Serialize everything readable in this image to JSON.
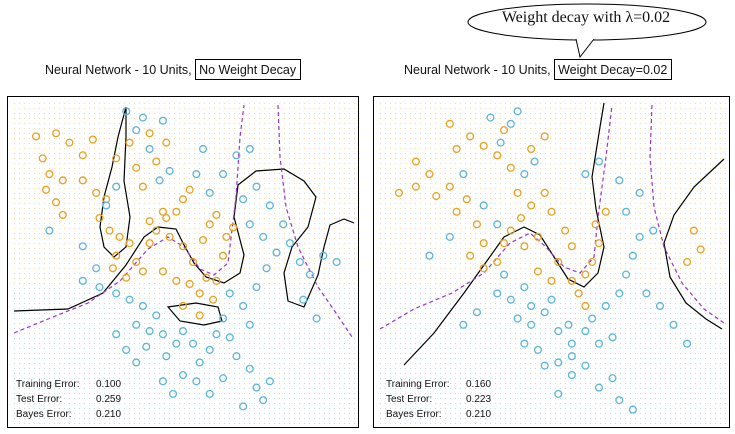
{
  "header": {
    "callout": "Weight decay with λ=0.02"
  },
  "panels": [
    {
      "title_prefix": "Neural Network - 10 Units,",
      "title_boxed": "No Weight Decay",
      "stats": [
        {
          "label": "Training Error:",
          "value": "0.100"
        },
        {
          "label": "Test Error:",
          "value": "0.259"
        },
        {
          "label": "Bayes Error:",
          "value": "0.210"
        }
      ]
    },
    {
      "title_prefix": "Neural Network - 10 Units,",
      "title_boxed": "Weight Decay=0.02",
      "stats": [
        {
          "label": "Training Error:",
          "value": "0.160"
        },
        {
          "label": "Test Error:",
          "value": "0.223"
        },
        {
          "label": "Bayes Error:",
          "value": "0.210"
        }
      ]
    }
  ],
  "chart_data": [
    {
      "type": "scatter",
      "title": "Neural Network - 10 Units, No Weight Decay",
      "xlim": [
        0,
        1
      ],
      "ylim": [
        0,
        1
      ],
      "colors": {
        "orange": "#e8a020",
        "blue": "#5ab4dc",
        "boundary": "#000000",
        "bayes": "#9933cc"
      },
      "series": [
        {
          "name": "orange",
          "points": [
            [
              0.12,
              0.91
            ],
            [
              0.16,
              0.88
            ],
            [
              0.2,
              0.84
            ],
            [
              0.08,
              0.83
            ],
            [
              0.1,
              0.78
            ],
            [
              0.14,
              0.76
            ],
            [
              0.09,
              0.73
            ],
            [
              0.12,
              0.69
            ],
            [
              0.2,
              0.76
            ],
            [
              0.24,
              0.72
            ],
            [
              0.27,
              0.7
            ],
            [
              0.25,
              0.64
            ],
            [
              0.28,
              0.6
            ],
            [
              0.31,
              0.58
            ],
            [
              0.3,
              0.52
            ],
            [
              0.34,
              0.56
            ],
            [
              0.29,
              0.48
            ],
            [
              0.33,
              0.45
            ],
            [
              0.36,
              0.5
            ],
            [
              0.38,
              0.47
            ],
            [
              0.4,
              0.56
            ],
            [
              0.42,
              0.6
            ],
            [
              0.45,
              0.64
            ],
            [
              0.48,
              0.66
            ],
            [
              0.5,
              0.7
            ],
            [
              0.52,
              0.73
            ],
            [
              0.46,
              0.58
            ],
            [
              0.5,
              0.55
            ],
            [
              0.53,
              0.5
            ],
            [
              0.56,
              0.57
            ],
            [
              0.58,
              0.62
            ],
            [
              0.6,
              0.65
            ],
            [
              0.57,
              0.45
            ],
            [
              0.55,
              0.4
            ],
            [
              0.59,
              0.38
            ],
            [
              0.6,
              0.44
            ],
            [
              0.62,
              0.52
            ],
            [
              0.63,
              0.58
            ],
            [
              0.65,
              0.61
            ],
            [
              0.52,
              0.43
            ],
            [
              0.48,
              0.44
            ],
            [
              0.44,
              0.47
            ],
            [
              0.5,
              0.36
            ],
            [
              0.55,
              0.33
            ],
            [
              0.44,
              0.66
            ],
            [
              0.4,
              0.63
            ],
            [
              0.38,
              0.74
            ],
            [
              0.36,
              0.8
            ],
            [
              0.42,
              0.82
            ],
            [
              0.45,
              0.88
            ],
            [
              0.4,
              0.91
            ],
            [
              0.34,
              0.88
            ],
            [
              0.3,
              0.83
            ],
            [
              0.14,
              0.65
            ],
            [
              0.06,
              0.9
            ],
            [
              0.23,
              0.89
            ]
          ]
        },
        {
          "name": "blue",
          "points": [
            [
              0.1,
              0.6
            ],
            [
              0.2,
              0.55
            ],
            [
              0.24,
              0.48
            ],
            [
              0.2,
              0.44
            ],
            [
              0.25,
              0.42
            ],
            [
              0.3,
              0.4
            ],
            [
              0.34,
              0.38
            ],
            [
              0.38,
              0.36
            ],
            [
              0.36,
              0.3
            ],
            [
              0.4,
              0.28
            ],
            [
              0.42,
              0.33
            ],
            [
              0.44,
              0.27
            ],
            [
              0.39,
              0.23
            ],
            [
              0.45,
              0.2
            ],
            [
              0.48,
              0.24
            ],
            [
              0.5,
              0.28
            ],
            [
              0.53,
              0.24
            ],
            [
              0.55,
              0.18
            ],
            [
              0.58,
              0.22
            ],
            [
              0.6,
              0.27
            ],
            [
              0.62,
              0.32
            ],
            [
              0.64,
              0.26
            ],
            [
              0.66,
              0.2
            ],
            [
              0.7,
              0.16
            ],
            [
              0.72,
              0.1
            ],
            [
              0.74,
              0.06
            ],
            [
              0.76,
              0.12
            ],
            [
              0.68,
              0.04
            ],
            [
              0.62,
              0.13
            ],
            [
              0.58,
              0.08
            ],
            [
              0.54,
              0.12
            ],
            [
              0.5,
              0.14
            ],
            [
              0.47,
              0.08
            ],
            [
              0.44,
              0.12
            ],
            [
              0.36,
              0.18
            ],
            [
              0.33,
              0.22
            ],
            [
              0.3,
              0.27
            ],
            [
              0.64,
              0.4
            ],
            [
              0.68,
              0.36
            ],
            [
              0.7,
              0.3
            ],
            [
              0.72,
              0.42
            ],
            [
              0.75,
              0.48
            ],
            [
              0.78,
              0.53
            ],
            [
              0.74,
              0.58
            ],
            [
              0.7,
              0.62
            ],
            [
              0.68,
              0.7
            ],
            [
              0.72,
              0.74
            ],
            [
              0.76,
              0.68
            ],
            [
              0.8,
              0.62
            ],
            [
              0.82,
              0.56
            ],
            [
              0.85,
              0.5
            ],
            [
              0.88,
              0.46
            ],
            [
              0.92,
              0.52
            ],
            [
              0.96,
              0.5
            ],
            [
              0.86,
              0.38
            ],
            [
              0.9,
              0.32
            ],
            [
              0.38,
              0.96
            ],
            [
              0.4,
              0.86
            ],
            [
              0.36,
              0.92
            ],
            [
              0.43,
              0.76
            ],
            [
              0.46,
              0.79
            ],
            [
              0.44,
              0.95
            ],
            [
              0.33,
              0.98
            ],
            [
              0.27,
              0.68
            ],
            [
              0.3,
              0.74
            ],
            [
              0.54,
              0.78
            ],
            [
              0.58,
              0.72
            ],
            [
              0.62,
              0.78
            ],
            [
              0.66,
              0.84
            ],
            [
              0.7,
              0.86
            ],
            [
              0.56,
              0.86
            ]
          ]
        }
      ],
      "decision_boundary": true,
      "bayes_boundary": true,
      "xlabel": "",
      "ylabel": ""
    },
    {
      "type": "scatter",
      "title": "Neural Network - 10 Units, Weight Decay=0.02",
      "xlim": [
        0,
        1
      ],
      "ylim": [
        0,
        1
      ],
      "colors": {
        "orange": "#e8a020",
        "blue": "#5ab4dc",
        "boundary": "#000000",
        "bayes": "#9933cc"
      },
      "series": [
        {
          "name": "orange",
          "points": [
            [
              0.1,
              0.82
            ],
            [
              0.14,
              0.78
            ],
            [
              0.1,
              0.74
            ],
            [
              0.16,
              0.71
            ],
            [
              0.2,
              0.74
            ],
            [
              0.25,
              0.7
            ],
            [
              0.22,
              0.66
            ],
            [
              0.28,
              0.62
            ],
            [
              0.3,
              0.56
            ],
            [
              0.26,
              0.52
            ],
            [
              0.3,
              0.48
            ],
            [
              0.34,
              0.5
            ],
            [
              0.36,
              0.56
            ],
            [
              0.38,
              0.6
            ],
            [
              0.41,
              0.64
            ],
            [
              0.44,
              0.68
            ],
            [
              0.48,
              0.72
            ],
            [
              0.5,
              0.66
            ],
            [
              0.54,
              0.6
            ],
            [
              0.56,
              0.55
            ],
            [
              0.52,
              0.5
            ],
            [
              0.5,
              0.44
            ],
            [
              0.46,
              0.47
            ],
            [
              0.56,
              0.44
            ],
            [
              0.58,
              0.4
            ],
            [
              0.6,
              0.46
            ],
            [
              0.6,
              0.36
            ],
            [
              0.62,
              0.5
            ],
            [
              0.64,
              0.56
            ],
            [
              0.63,
              0.62
            ],
            [
              0.66,
              0.66
            ],
            [
              0.46,
              0.58
            ],
            [
              0.42,
              0.55
            ],
            [
              0.4,
              0.72
            ],
            [
              0.38,
              0.8
            ],
            [
              0.34,
              0.84
            ],
            [
              0.3,
              0.87
            ],
            [
              0.36,
              0.92
            ],
            [
              0.26,
              0.9
            ],
            [
              0.22,
              0.86
            ],
            [
              0.44,
              0.86
            ],
            [
              0.48,
              0.9
            ],
            [
              0.92,
              0.6
            ],
            [
              0.94,
              0.54
            ],
            [
              0.9,
              0.5
            ],
            [
              0.05,
              0.72
            ],
            [
              0.2,
              0.94
            ]
          ]
        },
        {
          "name": "blue",
          "points": [
            [
              0.32,
              0.96
            ],
            [
              0.35,
              0.88
            ],
            [
              0.38,
              0.94
            ],
            [
              0.42,
              0.78
            ],
            [
              0.45,
              0.82
            ],
            [
              0.4,
              0.98
            ],
            [
              0.24,
              0.78
            ],
            [
              0.3,
              0.68
            ],
            [
              0.34,
              0.62
            ],
            [
              0.36,
              0.46
            ],
            [
              0.34,
              0.4
            ],
            [
              0.38,
              0.38
            ],
            [
              0.42,
              0.42
            ],
            [
              0.44,
              0.36
            ],
            [
              0.4,
              0.32
            ],
            [
              0.44,
              0.3
            ],
            [
              0.48,
              0.34
            ],
            [
              0.5,
              0.38
            ],
            [
              0.52,
              0.28
            ],
            [
              0.55,
              0.3
            ],
            [
              0.56,
              0.24
            ],
            [
              0.6,
              0.28
            ],
            [
              0.62,
              0.32
            ],
            [
              0.64,
              0.24
            ],
            [
              0.68,
              0.26
            ],
            [
              0.66,
              0.36
            ],
            [
              0.7,
              0.4
            ],
            [
              0.72,
              0.46
            ],
            [
              0.74,
              0.52
            ],
            [
              0.76,
              0.58
            ],
            [
              0.8,
              0.6
            ],
            [
              0.72,
              0.66
            ],
            [
              0.76,
              0.72
            ],
            [
              0.7,
              0.76
            ],
            [
              0.64,
              0.82
            ],
            [
              0.6,
              0.78
            ],
            [
              0.78,
              0.4
            ],
            [
              0.82,
              0.36
            ],
            [
              0.86,
              0.3
            ],
            [
              0.9,
              0.24
            ],
            [
              0.46,
              0.22
            ],
            [
              0.48,
              0.17
            ],
            [
              0.52,
              0.18
            ],
            [
              0.56,
              0.14
            ],
            [
              0.6,
              0.17
            ],
            [
              0.64,
              0.1
            ],
            [
              0.7,
              0.06
            ],
            [
              0.74,
              0.03
            ],
            [
              0.68,
              0.13
            ],
            [
              0.56,
              0.2
            ],
            [
              0.42,
              0.24
            ],
            [
              0.52,
              0.08
            ],
            [
              0.2,
              0.58
            ],
            [
              0.28,
              0.34
            ],
            [
              0.14,
              0.52
            ],
            [
              0.24,
              0.3
            ]
          ]
        }
      ],
      "decision_boundary": true,
      "bayes_boundary": true,
      "xlabel": "",
      "ylabel": ""
    }
  ]
}
